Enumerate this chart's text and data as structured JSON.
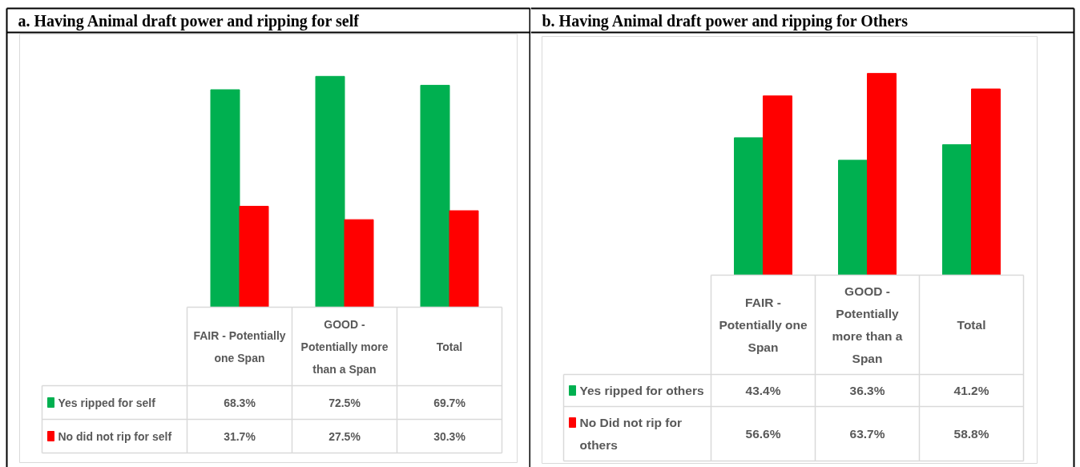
{
  "chart_data": [
    {
      "type": "bar",
      "title": "a. Having Animal draft power and ripping for self",
      "categories": [
        "FAIR - Potentially one Span",
        "GOOD - Potentially more than a Span",
        "Total"
      ],
      "legend": "bottom left",
      "series": [
        {
          "name": "Yes ripped for self",
          "color": "#00b050",
          "values": [
            68.3,
            72.5,
            69.7
          ],
          "value_labels": [
            "68.3%",
            "72.5%",
            "69.7%"
          ]
        },
        {
          "name": "No did not rip for self",
          "color": "#ff0000",
          "values": [
            31.7,
            27.5,
            30.3
          ],
          "value_labels": [
            "31.7%",
            "27.5%",
            "30.3%"
          ]
        }
      ]
    },
    {
      "type": "bar",
      "title": "b. Having Animal draft power and ripping for Others",
      "categories": [
        "FAIR - Potentially one Span",
        "GOOD - Potentially more than a Span",
        "Total"
      ],
      "legend": "bottom left",
      "series": [
        {
          "name": "Yes ripped for others",
          "color": "#00b050",
          "values": [
            43.4,
            36.3,
            41.2
          ],
          "value_labels": [
            "43.4%",
            "36.3%",
            "41.2%"
          ]
        },
        {
          "name": "No Did not rip for others",
          "color": "#ff0000",
          "values": [
            56.6,
            63.7,
            58.8
          ],
          "value_labels": [
            "56.6%",
            "63.7%",
            "58.8%"
          ]
        }
      ]
    }
  ]
}
